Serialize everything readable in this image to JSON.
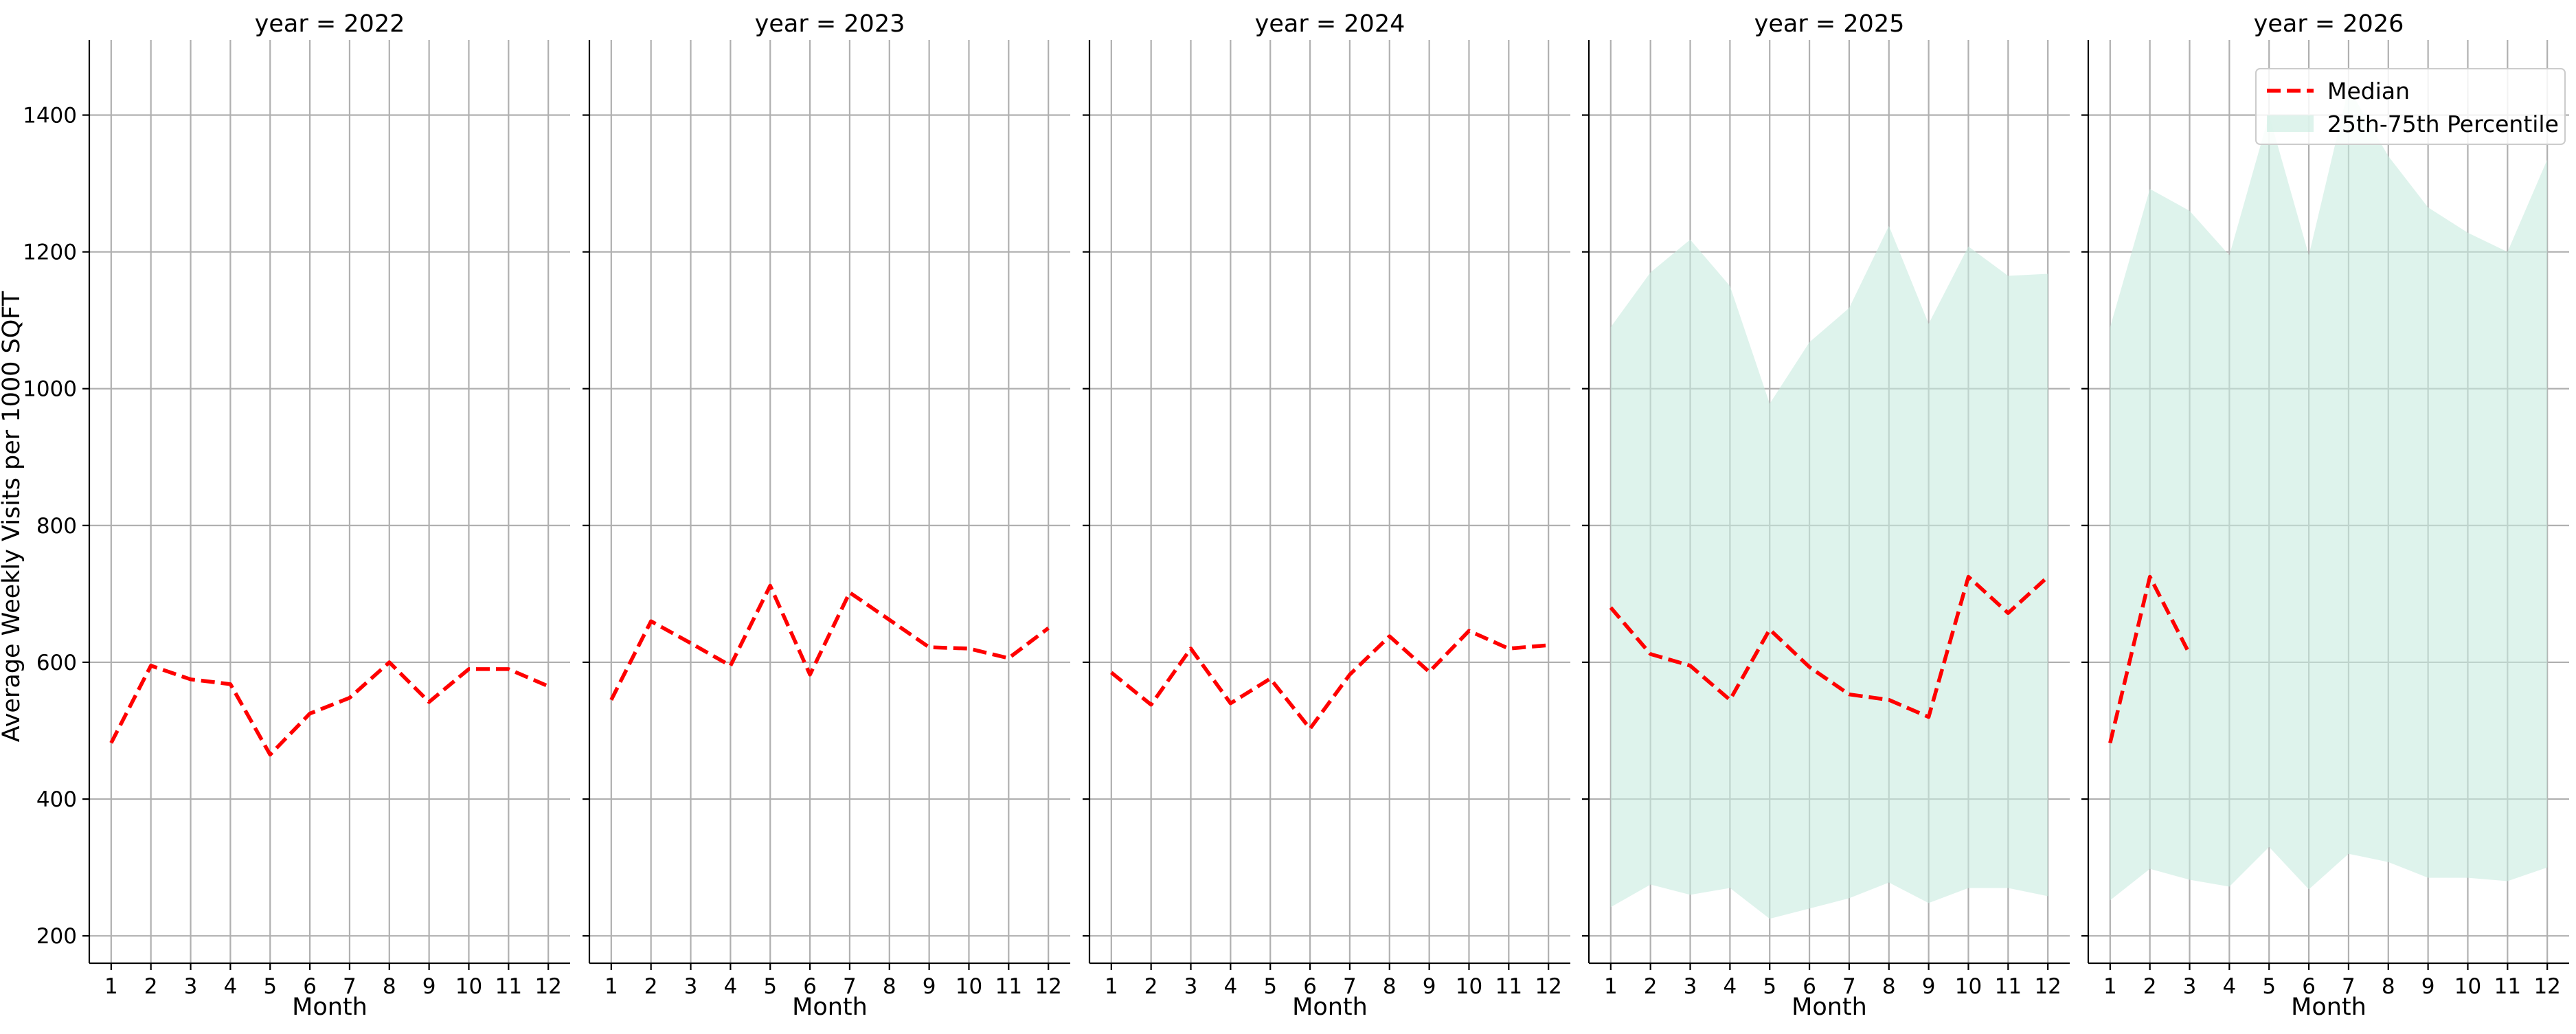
{
  "chart_data": {
    "type": "line",
    "ylabel": "Average Weekly Visits per 1000 SQFT",
    "xlabel": "Month",
    "ylim": [
      160,
      1510
    ],
    "xlim": [
      0.45,
      12.55
    ],
    "yticks": [
      200,
      400,
      600,
      800,
      1000,
      1200,
      1400
    ],
    "xticks": [
      1,
      2,
      3,
      4,
      5,
      6,
      7,
      8,
      9,
      10,
      11,
      12
    ],
    "grid": true,
    "shared_y": true,
    "colors": {
      "median": "#ff0000",
      "band": "#c8ebe0"
    },
    "legend": {
      "placement": "top-right",
      "panel": 4,
      "entries": [
        {
          "key": "median",
          "label": "Median"
        },
        {
          "key": "band",
          "label": "25th-75th Percentile"
        }
      ]
    },
    "panels": [
      {
        "title": "year = 2022",
        "median": {
          "x": [
            1,
            2,
            3,
            4,
            5,
            6,
            7,
            8,
            9,
            10,
            11,
            12
          ],
          "y": [
            482,
            595,
            575,
            568,
            465,
            525,
            548,
            600,
            542,
            590,
            590,
            565
          ]
        }
      },
      {
        "title": "year = 2023",
        "median": {
          "x": [
            1,
            2,
            3,
            4,
            5,
            6,
            7,
            8,
            9,
            10,
            11,
            12
          ],
          "y": [
            545,
            660,
            628,
            595,
            712,
            582,
            702,
            662,
            622,
            620,
            606,
            650
          ]
        }
      },
      {
        "title": "year = 2024",
        "median": {
          "x": [
            1,
            2,
            3,
            4,
            5,
            6,
            7,
            8,
            9,
            10,
            11,
            12
          ],
          "y": [
            585,
            538,
            620,
            540,
            576,
            503,
            582,
            638,
            586,
            646,
            620,
            625
          ]
        }
      },
      {
        "title": "year = 2025",
        "median": {
          "x": [
            1,
            2,
            3,
            4,
            5,
            6,
            7,
            8,
            9,
            10,
            11,
            12
          ],
          "y": [
            680,
            612,
            595,
            545,
            648,
            593,
            553,
            545,
            520,
            725,
            672,
            725
          ]
        },
        "band": {
          "x": [
            1,
            2,
            3,
            4,
            5,
            6,
            7,
            8,
            9,
            10,
            11,
            12
          ],
          "lower": [
            242,
            275,
            260,
            270,
            225,
            240,
            255,
            278,
            248,
            270,
            270,
            258
          ],
          "upper": [
            1090,
            1170,
            1218,
            1150,
            978,
            1068,
            1118,
            1238,
            1095,
            1208,
            1165,
            1168
          ]
        }
      },
      {
        "title": "year = 2026",
        "median": {
          "x": [
            1,
            2,
            3
          ],
          "y": [
            482,
            725,
            612
          ]
        },
        "band": {
          "x": [
            1,
            2,
            3,
            4,
            5,
            6,
            7,
            8,
            9,
            10,
            11,
            12
          ],
          "lower": [
            252,
            298,
            282,
            272,
            330,
            268,
            320,
            308,
            285,
            285,
            280,
            300
          ],
          "upper": [
            1090,
            1292,
            1260,
            1195,
            1400,
            1195,
            1440,
            1340,
            1265,
            1228,
            1200,
            1335
          ]
        }
      }
    ]
  }
}
